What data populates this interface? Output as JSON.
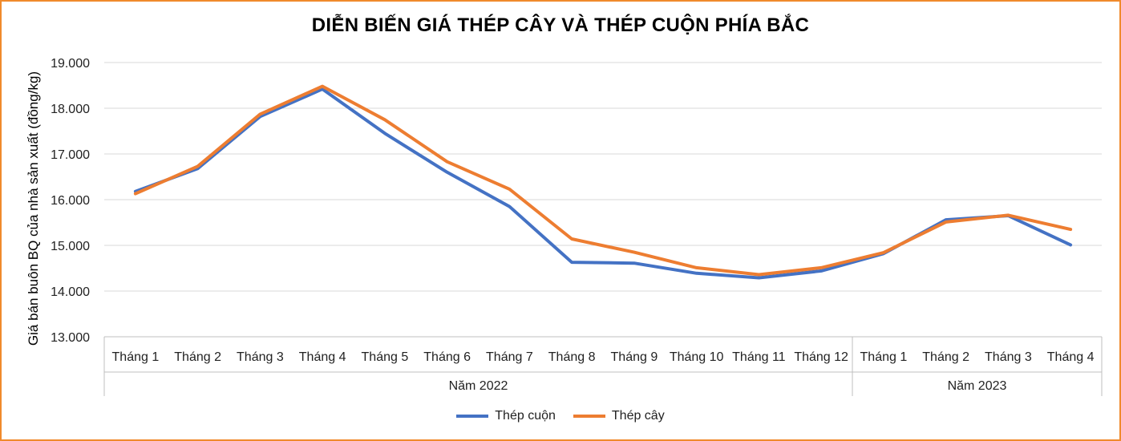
{
  "chart_data": {
    "type": "line",
    "title": "DIỄN BIẾN GIÁ THÉP CÂY VÀ THÉP CUỘN PHÍA BẮC",
    "ylabel": "Giá bán buôn BQ của nhà sản xuất (đồng/kg)",
    "xlabel": "",
    "ylim": [
      13000,
      19000
    ],
    "yticks": [
      "13.000",
      "14.000",
      "15.000",
      "16.000",
      "17.000",
      "18.000",
      "19.000"
    ],
    "ytick_values": [
      13000,
      14000,
      15000,
      16000,
      17000,
      18000,
      19000
    ],
    "categories": [
      "Tháng 1",
      "Tháng 2",
      "Tháng 3",
      "Tháng 4",
      "Tháng 5",
      "Tháng 6",
      "Tháng 7",
      "Tháng 8",
      "Tháng 9",
      "Tháng 10",
      "Tháng 11",
      "Tháng 12",
      "Tháng 1",
      "Tháng 2",
      "Tháng 3",
      "Tháng 4"
    ],
    "groups": [
      {
        "label": "Năm 2022",
        "count": 12
      },
      {
        "label": "Năm 2023",
        "count": 4
      }
    ],
    "grid": true,
    "legend_position": "bottom",
    "series": [
      {
        "name": "Thép cuộn",
        "color": "#4472c4",
        "values": [
          16180,
          16680,
          17820,
          18420,
          17450,
          16600,
          15850,
          14630,
          14610,
          14390,
          14290,
          14440,
          14820,
          15560,
          15650,
          15010
        ]
      },
      {
        "name": "Thép cây",
        "color": "#ed7d31",
        "values": [
          16130,
          16730,
          17870,
          18480,
          17750,
          16830,
          16230,
          15140,
          14850,
          14510,
          14360,
          14510,
          14840,
          15510,
          15660,
          15350
        ]
      }
    ]
  }
}
